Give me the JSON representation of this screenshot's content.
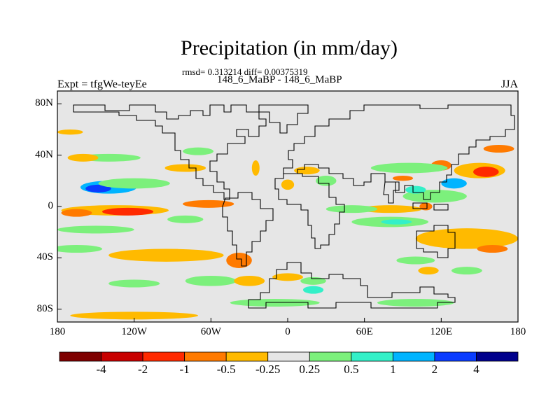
{
  "header": {
    "title": "Precipitation (in mm/day)",
    "stats": "rmsd= 0.313214 diff= 0.00375319",
    "subtitle": "148_6_MaBP - 148_6_MaBP",
    "left_label": "Expt = tfgWe-teyEe",
    "right_label": "JJA"
  },
  "colors": {
    "land_ocean_neutral": "#e6e6e6",
    "coastline": "#000000"
  },
  "chart_data": {
    "type": "heatmap",
    "title": "Precipitation (in mm/day)",
    "subtitle": "148_6_MaBP - 148_6_MaBP",
    "xlim": [
      -180,
      180
    ],
    "ylim": [
      -90,
      90
    ],
    "x_ticks": [
      {
        "value": -180,
        "label": "180"
      },
      {
        "value": -120,
        "label": "120W"
      },
      {
        "value": -60,
        "label": "60W"
      },
      {
        "value": 0,
        "label": "0"
      },
      {
        "value": 60,
        "label": "60E"
      },
      {
        "value": 120,
        "label": "120E"
      },
      {
        "value": 180,
        "label": "180"
      }
    ],
    "y_ticks": [
      {
        "value": 80,
        "label": "80N"
      },
      {
        "value": 40,
        "label": "40N"
      },
      {
        "value": 0,
        "label": "0"
      },
      {
        "value": -40,
        "label": "40S"
      },
      {
        "value": -80,
        "label": "80S"
      }
    ],
    "colorbar": {
      "levels": [
        "-4",
        "-2",
        "-1",
        "-0.5",
        "-0.25",
        "0.25",
        "0.5",
        "1",
        "2",
        "4"
      ],
      "colors": [
        "#7e0000",
        "#c80000",
        "#ff2a00",
        "#ff7a00",
        "#ffba00",
        "#e6e6e6",
        "#7cf07c",
        "#33f0c8",
        "#00b4ff",
        "#0a3cff",
        "#00008c"
      ]
    },
    "anomaly_regions": [
      {
        "lon": -140,
        "lat": 15,
        "rx": 22,
        "ry": 5,
        "level": 8
      },
      {
        "lon": -148,
        "lat": 14,
        "rx": 10,
        "ry": 3,
        "level": 9
      },
      {
        "lon": -120,
        "lat": 18,
        "rx": 28,
        "ry": 4,
        "level": 6
      },
      {
        "lon": -135,
        "lat": -3,
        "rx": 42,
        "ry": 4,
        "level": 4
      },
      {
        "lon": -125,
        "lat": -4,
        "rx": 20,
        "ry": 3,
        "level": 2
      },
      {
        "lon": -62,
        "lat": 2,
        "rx": 20,
        "ry": 3,
        "level": 3
      },
      {
        "lon": -165,
        "lat": -5,
        "rx": 12,
        "ry": 3,
        "level": 3
      },
      {
        "lon": -150,
        "lat": -18,
        "rx": 30,
        "ry": 3,
        "level": 6
      },
      {
        "lon": -80,
        "lat": -10,
        "rx": 14,
        "ry": 3,
        "level": 6
      },
      {
        "lon": -95,
        "lat": -38,
        "rx": 45,
        "ry": 5,
        "level": 4
      },
      {
        "lon": -38,
        "lat": -42,
        "rx": 10,
        "ry": 6,
        "level": 3
      },
      {
        "lon": -60,
        "lat": -58,
        "rx": 20,
        "ry": 4,
        "level": 6
      },
      {
        "lon": -30,
        "lat": -58,
        "rx": 12,
        "ry": 4,
        "level": 4
      },
      {
        "lon": -165,
        "lat": -33,
        "rx": 20,
        "ry": 3,
        "level": 6
      },
      {
        "lon": -140,
        "lat": 38,
        "rx": 25,
        "ry": 3,
        "level": 6
      },
      {
        "lon": -160,
        "lat": 38,
        "rx": 12,
        "ry": 3,
        "level": 4
      },
      {
        "lon": -80,
        "lat": 30,
        "rx": 16,
        "ry": 3,
        "level": 4
      },
      {
        "lon": -70,
        "lat": 43,
        "rx": 12,
        "ry": 3,
        "level": 6
      },
      {
        "lon": -170,
        "lat": 58,
        "rx": 10,
        "ry": 2,
        "level": 4
      },
      {
        "lon": 15,
        "lat": 28,
        "rx": 10,
        "ry": 3,
        "level": 4
      },
      {
        "lon": 30,
        "lat": 20,
        "rx": 8,
        "ry": 4,
        "level": 6
      },
      {
        "lon": 0,
        "lat": 17,
        "rx": 5,
        "ry": 4,
        "level": 4
      },
      {
        "lon": -25,
        "lat": 30,
        "rx": 3,
        "ry": 6,
        "level": 4
      },
      {
        "lon": 80,
        "lat": -2,
        "rx": 25,
        "ry": 3,
        "level": 4
      },
      {
        "lon": 80,
        "lat": -12,
        "rx": 30,
        "ry": 4,
        "level": 6
      },
      {
        "lon": 85,
        "lat": -12,
        "rx": 12,
        "ry": 2,
        "level": 7
      },
      {
        "lon": 140,
        "lat": -25,
        "rx": 40,
        "ry": 8,
        "level": 4
      },
      {
        "lon": 160,
        "lat": -33,
        "rx": 12,
        "ry": 3,
        "level": 3
      },
      {
        "lon": 150,
        "lat": 28,
        "rx": 20,
        "ry": 6,
        "level": 4
      },
      {
        "lon": 155,
        "lat": 27,
        "rx": 10,
        "ry": 4,
        "level": 2
      },
      {
        "lon": 120,
        "lat": 32,
        "rx": 8,
        "ry": 4,
        "level": 3
      },
      {
        "lon": 165,
        "lat": 45,
        "rx": 12,
        "ry": 3,
        "level": 3
      },
      {
        "lon": 130,
        "lat": 18,
        "rx": 10,
        "ry": 4,
        "level": 8
      },
      {
        "lon": 95,
        "lat": 30,
        "rx": 30,
        "ry": 4,
        "level": 6
      },
      {
        "lon": 115,
        "lat": 8,
        "rx": 25,
        "ry": 5,
        "level": 6
      },
      {
        "lon": 108,
        "lat": 0,
        "rx": 5,
        "ry": 3,
        "level": 3
      },
      {
        "lon": 100,
        "lat": 13,
        "rx": 8,
        "ry": 3,
        "level": 7
      },
      {
        "lon": 90,
        "lat": 22,
        "rx": 8,
        "ry": 2,
        "level": 3
      },
      {
        "lon": 50,
        "lat": -2,
        "rx": 20,
        "ry": 3,
        "level": 6
      },
      {
        "lon": 20,
        "lat": -58,
        "rx": 10,
        "ry": 3,
        "level": 6
      },
      {
        "lon": 0,
        "lat": -55,
        "rx": 12,
        "ry": 3,
        "level": 4
      },
      {
        "lon": -120,
        "lat": -60,
        "rx": 20,
        "ry": 3,
        "level": 6
      },
      {
        "lon": 100,
        "lat": -42,
        "rx": 15,
        "ry": 3,
        "level": 6
      },
      {
        "lon": 140,
        "lat": -50,
        "rx": 12,
        "ry": 3,
        "level": 6
      },
      {
        "lon": 110,
        "lat": -50,
        "rx": 8,
        "ry": 3,
        "level": 4
      },
      {
        "lon": -120,
        "lat": -85,
        "rx": 50,
        "ry": 3,
        "level": 4
      },
      {
        "lon": -10,
        "lat": -75,
        "rx": 35,
        "ry": 3,
        "level": 6
      },
      {
        "lon": 20,
        "lat": -65,
        "rx": 8,
        "ry": 3,
        "level": 7
      },
      {
        "lon": 100,
        "lat": -75,
        "rx": 30,
        "ry": 3,
        "level": 6
      }
    ]
  }
}
